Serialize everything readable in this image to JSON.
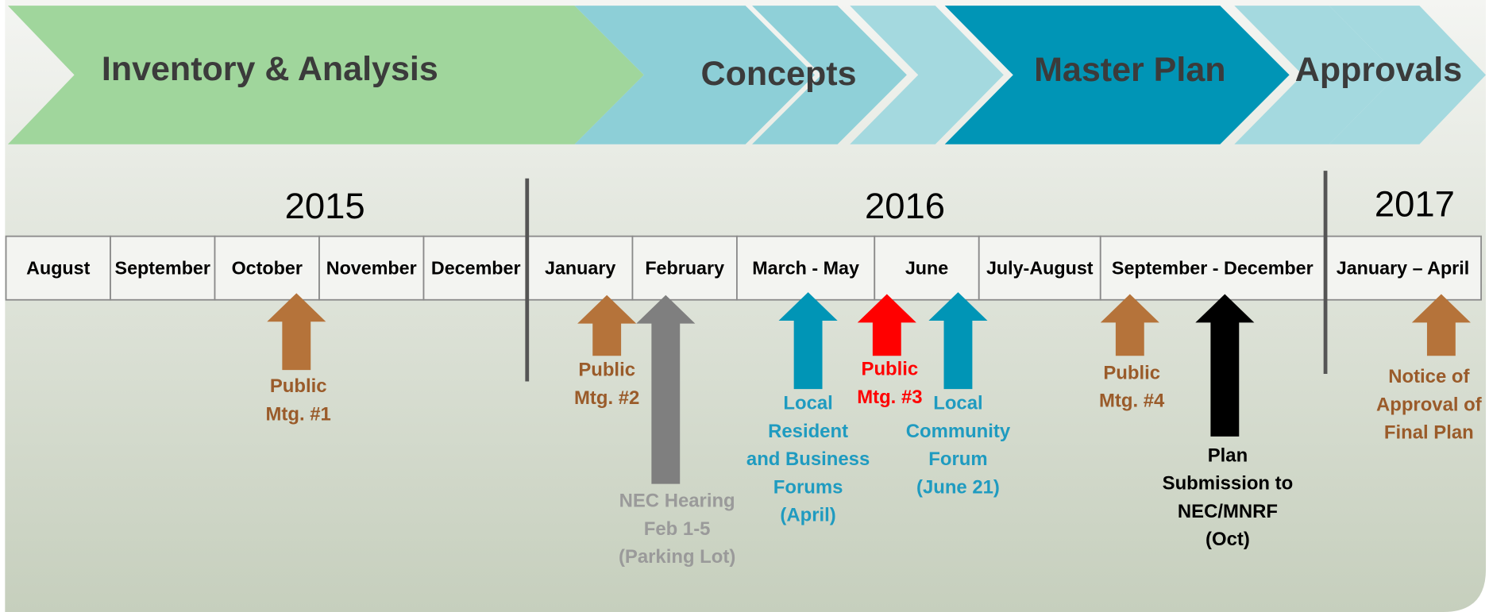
{
  "phases": [
    "Inventory & Analysis",
    "Concepts",
    "Master Plan",
    "Approvals"
  ],
  "years": [
    "2015",
    "2016",
    "2017"
  ],
  "months": [
    "August",
    "September",
    "October",
    "November",
    "December",
    "January",
    "February",
    "March - May",
    "June",
    "July-August",
    "September - December",
    "January – April"
  ],
  "events": [
    {
      "lines": [
        "Public",
        "Mtg. #1"
      ]
    },
    {
      "lines": [
        "Public",
        "Mtg. #2"
      ]
    },
    {
      "lines": [
        "NEC Hearing",
        "Feb 1-5",
        "(Parking Lot)"
      ]
    },
    {
      "lines": [
        "Local",
        "Resident",
        "and Business",
        "Forums",
        "(April)"
      ]
    },
    {
      "lines": [
        "Public",
        "Mtg. #3"
      ]
    },
    {
      "lines": [
        "Local",
        "Community",
        "Forum",
        "(June 21)"
      ]
    },
    {
      "lines": [
        "Public",
        "Mtg. #4"
      ]
    },
    {
      "lines": [
        "Plan",
        "Submission to",
        "NEC/MNRF",
        "(Oct)"
      ]
    },
    {
      "lines": [
        "Notice of",
        "Approval of",
        "Final Plan"
      ]
    }
  ]
}
